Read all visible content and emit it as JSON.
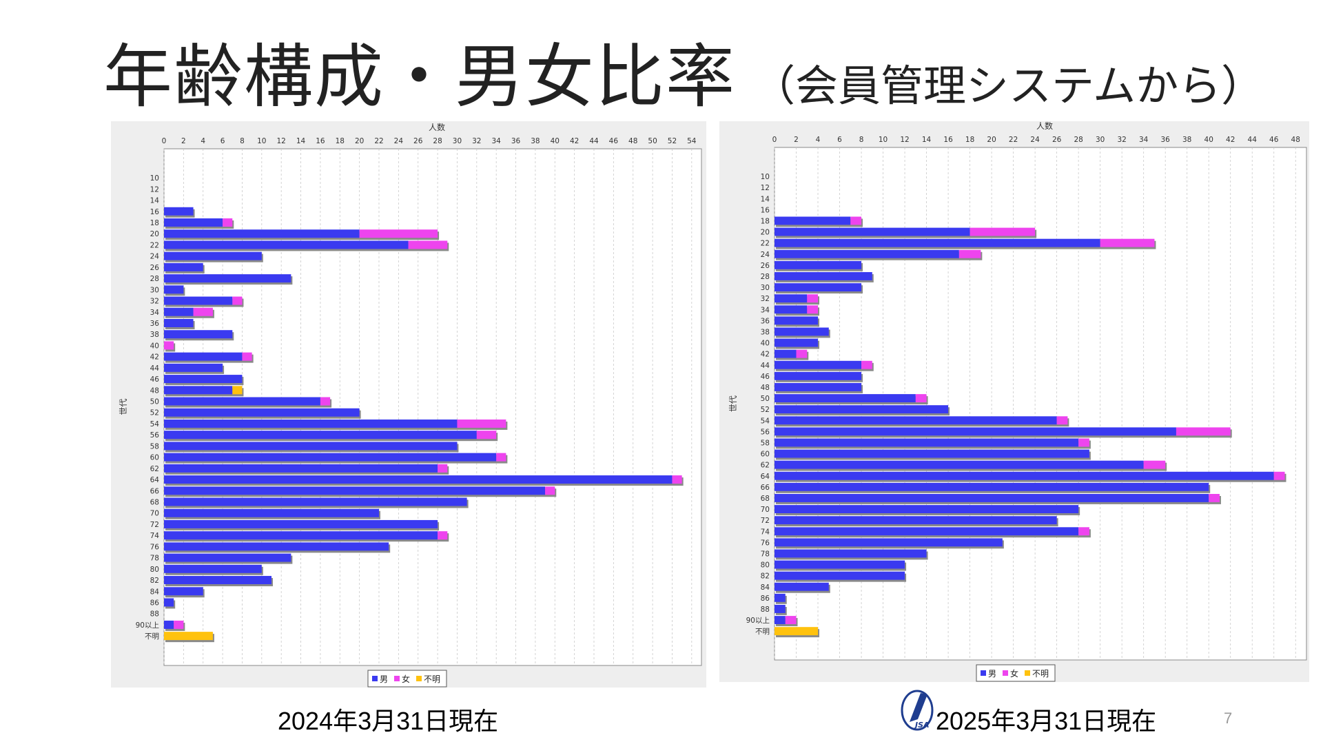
{
  "slide": {
    "title": "年齢構成・男女比率",
    "subtitle": "（会員管理システムから）",
    "page_number": "7",
    "logo_text": "JSA",
    "logo_icon": "jsa-logo-icon"
  },
  "colors": {
    "male": "#3a3af0",
    "female": "#ee44ee",
    "unknown": "#ffc20e",
    "shadow": "#8a8a8a",
    "panel": "#eeeeee"
  },
  "chart_data": [
    {
      "type": "bar",
      "orientation": "horizontal",
      "stacked": true,
      "caption": "2024年3月31日現在",
      "xlabel": "人数",
      "ylabel": "世代",
      "xlim": [
        0,
        55
      ],
      "x_ticks": [
        0,
        2,
        4,
        6,
        8,
        10,
        12,
        14,
        16,
        18,
        20,
        22,
        24,
        26,
        28,
        30,
        32,
        34,
        36,
        38,
        40,
        42,
        44,
        46,
        48,
        50,
        52,
        54
      ],
      "grid": true,
      "legend_position": "bottom-center",
      "categories": [
        "10",
        "12",
        "14",
        "16",
        "18",
        "20",
        "22",
        "24",
        "26",
        "28",
        "30",
        "32",
        "34",
        "36",
        "38",
        "40",
        "42",
        "44",
        "46",
        "48",
        "50",
        "52",
        "54",
        "56",
        "58",
        "60",
        "62",
        "64",
        "66",
        "68",
        "70",
        "72",
        "74",
        "76",
        "78",
        "80",
        "82",
        "84",
        "86",
        "88",
        "90以上",
        "不明"
      ],
      "series": [
        {
          "name": "男",
          "values": [
            0,
            0,
            0,
            3,
            6,
            20,
            25,
            10,
            4,
            13,
            2,
            7,
            3,
            3,
            7,
            0,
            8,
            6,
            8,
            7,
            16,
            20,
            30,
            32,
            30,
            34,
            28,
            52,
            39,
            31,
            22,
            28,
            28,
            23,
            13,
            10,
            11,
            4,
            1,
            0,
            1,
            0
          ]
        },
        {
          "name": "女",
          "values": [
            0,
            0,
            0,
            0,
            1,
            8,
            4,
            0,
            0,
            0,
            0,
            1,
            2,
            0,
            0,
            1,
            1,
            0,
            0,
            0,
            1,
            0,
            5,
            2,
            0,
            1,
            1,
            1,
            1,
            0,
            0,
            0,
            1,
            0,
            0,
            0,
            0,
            0,
            0,
            0,
            1,
            0
          ]
        },
        {
          "name": "不明",
          "values": [
            0,
            0,
            0,
            0,
            0,
            0,
            0,
            0,
            0,
            0,
            0,
            0,
            0,
            0,
            0,
            0,
            0,
            0,
            0,
            1,
            0,
            0,
            0,
            0,
            0,
            0,
            0,
            0,
            0,
            0,
            0,
            0,
            0,
            0,
            0,
            0,
            0,
            0,
            0,
            0,
            0,
            5
          ]
        }
      ]
    },
    {
      "type": "bar",
      "orientation": "horizontal",
      "stacked": true,
      "caption": "2025年3月31日現在",
      "xlabel": "人数",
      "ylabel": "世代",
      "xlim": [
        0,
        49
      ],
      "x_ticks": [
        0,
        2,
        4,
        6,
        8,
        10,
        12,
        14,
        16,
        18,
        20,
        22,
        24,
        26,
        28,
        30,
        32,
        34,
        36,
        38,
        40,
        42,
        44,
        46,
        48
      ],
      "grid": true,
      "legend_position": "bottom-center",
      "categories": [
        "10",
        "12",
        "14",
        "16",
        "18",
        "20",
        "22",
        "24",
        "26",
        "28",
        "30",
        "32",
        "34",
        "36",
        "38",
        "40",
        "42",
        "44",
        "46",
        "48",
        "50",
        "52",
        "54",
        "56",
        "58",
        "60",
        "62",
        "64",
        "66",
        "68",
        "70",
        "72",
        "74",
        "76",
        "78",
        "80",
        "82",
        "84",
        "86",
        "88",
        "90以上",
        "不明"
      ],
      "series": [
        {
          "name": "男",
          "values": [
            0,
            0,
            0,
            0,
            7,
            18,
            30,
            17,
            8,
            9,
            8,
            3,
            3,
            4,
            5,
            4,
            2,
            8,
            8,
            8,
            13,
            16,
            26,
            37,
            28,
            29,
            34,
            46,
            40,
            40,
            28,
            26,
            28,
            21,
            14,
            12,
            12,
            5,
            1,
            1,
            1,
            0
          ]
        },
        {
          "name": "女",
          "values": [
            0,
            0,
            0,
            0,
            1,
            6,
            5,
            2,
            0,
            0,
            0,
            1,
            1,
            0,
            0,
            0,
            1,
            1,
            0,
            0,
            1,
            0,
            1,
            5,
            1,
            0,
            2,
            1,
            0,
            1,
            0,
            0,
            1,
            0,
            0,
            0,
            0,
            0,
            0,
            0,
            1,
            0
          ]
        },
        {
          "name": "不明",
          "values": [
            0,
            0,
            0,
            0,
            0,
            0,
            0,
            0,
            0,
            0,
            0,
            0,
            0,
            0,
            0,
            0,
            0,
            0,
            0,
            0,
            0,
            0,
            0,
            0,
            0,
            0,
            0,
            0,
            0,
            0,
            0,
            0,
            0,
            0,
            0,
            0,
            0,
            0,
            0,
            0,
            0,
            4
          ]
        }
      ]
    }
  ]
}
